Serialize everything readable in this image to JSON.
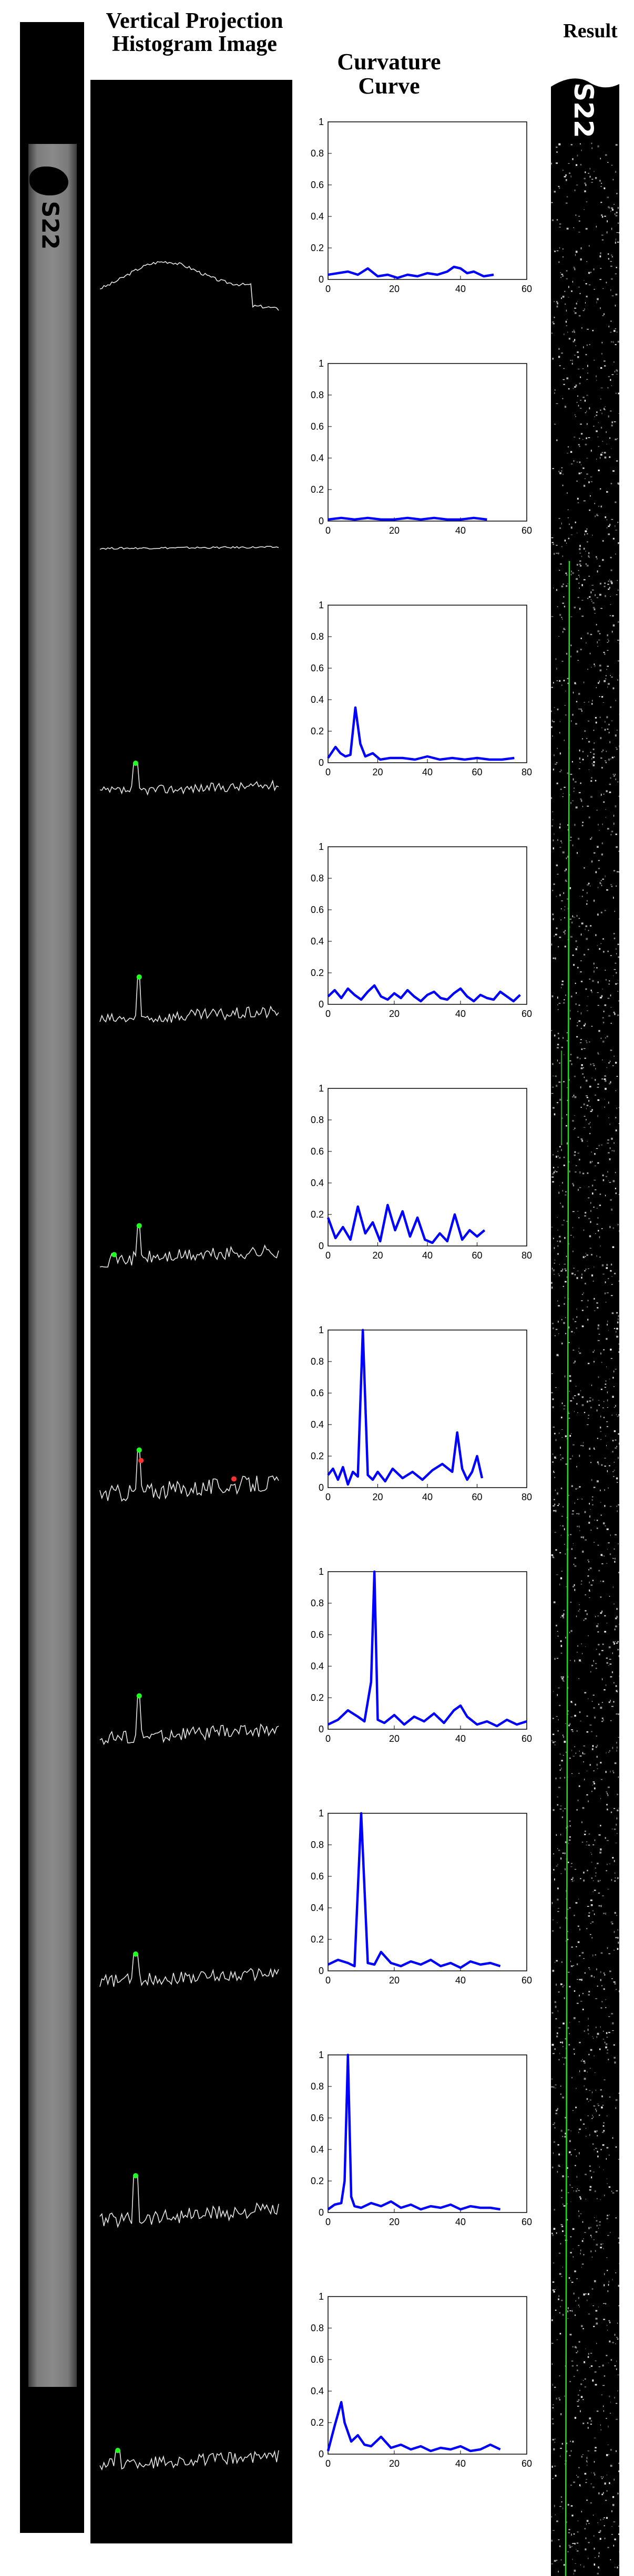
{
  "headers": {
    "vertical_projection": "Vertical Projection Histogram Image",
    "curvature": "Curvature Curve",
    "result": "Result"
  },
  "strip_label": "S22",
  "colors": {
    "curve": "#0000ff",
    "peak_green": "#22ff22",
    "peak_red": "#ff3030",
    "result_line": "#22dd22"
  },
  "chart_data": [
    {
      "type": "line",
      "xlim": [
        0,
        60
      ],
      "ylim": [
        0,
        1
      ],
      "xticks": [
        0,
        20,
        40,
        60
      ],
      "yticks": [
        0,
        0.2,
        0.4,
        0.6,
        0.8,
        1
      ],
      "series": [
        {
          "x": [
            0,
            3,
            6,
            9,
            12,
            15,
            18,
            21,
            24,
            27,
            30,
            33,
            36,
            38,
            40,
            42,
            44,
            47,
            50
          ],
          "y": [
            0.03,
            0.04,
            0.05,
            0.03,
            0.07,
            0.02,
            0.03,
            0.01,
            0.03,
            0.02,
            0.04,
            0.03,
            0.05,
            0.08,
            0.07,
            0.04,
            0.05,
            0.02,
            0.03
          ]
        }
      ]
    },
    {
      "type": "line",
      "xlim": [
        0,
        60
      ],
      "ylim": [
        0,
        1
      ],
      "xticks": [
        0,
        20,
        40,
        60
      ],
      "yticks": [
        0,
        0.2,
        0.4,
        0.6,
        0.8,
        1
      ],
      "series": [
        {
          "x": [
            0,
            4,
            8,
            12,
            16,
            20,
            24,
            28,
            32,
            36,
            40,
            44,
            48
          ],
          "y": [
            0.01,
            0.02,
            0.01,
            0.02,
            0.01,
            0.01,
            0.02,
            0.01,
            0.02,
            0.01,
            0.01,
            0.02,
            0.01
          ]
        }
      ]
    },
    {
      "type": "line",
      "xlim": [
        0,
        80
      ],
      "ylim": [
        0,
        1
      ],
      "xticks": [
        0,
        20,
        40,
        60,
        80
      ],
      "yticks": [
        0,
        0.2,
        0.4,
        0.6,
        0.8,
        1
      ],
      "series": [
        {
          "x": [
            0,
            3,
            5,
            7,
            9,
            11,
            13,
            15,
            18,
            21,
            25,
            30,
            35,
            40,
            45,
            50,
            55,
            60,
            65,
            70,
            75
          ],
          "y": [
            0.03,
            0.1,
            0.06,
            0.04,
            0.05,
            0.35,
            0.12,
            0.04,
            0.06,
            0.02,
            0.03,
            0.03,
            0.02,
            0.04,
            0.02,
            0.03,
            0.02,
            0.03,
            0.02,
            0.02,
            0.03
          ]
        }
      ]
    },
    {
      "type": "line",
      "xlim": [
        0,
        60
      ],
      "ylim": [
        0,
        1
      ],
      "xticks": [
        0,
        20,
        40,
        60
      ],
      "yticks": [
        0,
        0.2,
        0.4,
        0.6,
        0.8,
        1
      ],
      "series": [
        {
          "x": [
            0,
            2,
            4,
            6,
            8,
            10,
            12,
            14,
            16,
            18,
            20,
            22,
            24,
            26,
            28,
            30,
            32,
            34,
            36,
            38,
            40,
            42,
            44,
            46,
            48,
            50,
            52,
            54,
            56,
            58
          ],
          "y": [
            0.05,
            0.09,
            0.04,
            0.1,
            0.06,
            0.03,
            0.08,
            0.12,
            0.05,
            0.03,
            0.07,
            0.04,
            0.09,
            0.05,
            0.02,
            0.06,
            0.08,
            0.04,
            0.03,
            0.07,
            0.1,
            0.05,
            0.02,
            0.06,
            0.04,
            0.03,
            0.08,
            0.05,
            0.02,
            0.06
          ]
        }
      ]
    },
    {
      "type": "line",
      "xlim": [
        0,
        80
      ],
      "ylim": [
        0,
        1
      ],
      "xticks": [
        0,
        20,
        40,
        60,
        80
      ],
      "yticks": [
        0,
        0.2,
        0.4,
        0.6,
        0.8,
        1
      ],
      "series": [
        {
          "x": [
            0,
            3,
            6,
            9,
            12,
            15,
            18,
            21,
            24,
            27,
            30,
            33,
            36,
            39,
            42,
            45,
            48,
            51,
            54,
            57,
            60,
            63
          ],
          "y": [
            0.18,
            0.05,
            0.12,
            0.04,
            0.25,
            0.08,
            0.15,
            0.03,
            0.26,
            0.1,
            0.22,
            0.06,
            0.18,
            0.04,
            0.02,
            0.08,
            0.03,
            0.2,
            0.04,
            0.1,
            0.06,
            0.1
          ]
        }
      ]
    },
    {
      "type": "line",
      "xlim": [
        0,
        80
      ],
      "ylim": [
        0,
        1
      ],
      "xticks": [
        0,
        20,
        40,
        60,
        80
      ],
      "yticks": [
        0,
        0.2,
        0.4,
        0.6,
        0.8,
        1
      ],
      "series": [
        {
          "x": [
            0,
            2,
            4,
            6,
            8,
            10,
            12,
            14,
            16,
            18,
            20,
            23,
            26,
            30,
            34,
            38,
            42,
            46,
            50,
            52,
            54,
            56,
            58,
            60,
            62
          ],
          "y": [
            0.08,
            0.12,
            0.05,
            0.13,
            0.02,
            0.1,
            0.07,
            1.0,
            0.08,
            0.05,
            0.1,
            0.04,
            0.12,
            0.06,
            0.1,
            0.05,
            0.11,
            0.15,
            0.1,
            0.35,
            0.12,
            0.05,
            0.1,
            0.2,
            0.06
          ]
        }
      ]
    },
    {
      "type": "line",
      "xlim": [
        0,
        60
      ],
      "ylim": [
        0,
        1
      ],
      "xticks": [
        0,
        20,
        40,
        60
      ],
      "yticks": [
        0,
        0.2,
        0.4,
        0.6,
        0.8,
        1
      ],
      "series": [
        {
          "x": [
            0,
            3,
            6,
            9,
            11,
            13,
            14,
            15,
            17,
            20,
            23,
            26,
            29,
            32,
            35,
            38,
            40,
            42,
            45,
            48,
            51,
            54,
            57,
            60
          ],
          "y": [
            0.03,
            0.06,
            0.12,
            0.08,
            0.05,
            0.3,
            1.0,
            0.06,
            0.04,
            0.09,
            0.03,
            0.08,
            0.05,
            0.1,
            0.04,
            0.12,
            0.15,
            0.08,
            0.03,
            0.05,
            0.02,
            0.06,
            0.03,
            0.05
          ]
        }
      ]
    },
    {
      "type": "line",
      "xlim": [
        0,
        60
      ],
      "ylim": [
        0,
        1
      ],
      "xticks": [
        0,
        20,
        40,
        60
      ],
      "yticks": [
        0,
        0.2,
        0.4,
        0.6,
        0.8,
        1
      ],
      "series": [
        {
          "x": [
            0,
            3,
            6,
            8,
            10,
            12,
            14,
            16,
            19,
            22,
            25,
            28,
            31,
            34,
            37,
            40,
            43,
            46,
            49,
            52
          ],
          "y": [
            0.04,
            0.07,
            0.05,
            0.03,
            1.0,
            0.05,
            0.04,
            0.12,
            0.05,
            0.03,
            0.06,
            0.04,
            0.07,
            0.03,
            0.05,
            0.02,
            0.06,
            0.04,
            0.05,
            0.03
          ]
        }
      ]
    },
    {
      "type": "line",
      "xlim": [
        0,
        60
      ],
      "ylim": [
        0,
        1
      ],
      "xticks": [
        0,
        20,
        40,
        60
      ],
      "yticks": [
        0,
        0.2,
        0.4,
        0.6,
        0.8,
        1
      ],
      "series": [
        {
          "x": [
            0,
            2,
            4,
            5,
            6,
            7,
            8,
            10,
            13,
            16,
            19,
            22,
            25,
            28,
            31,
            34,
            37,
            40,
            43,
            46,
            49,
            52
          ],
          "y": [
            0.02,
            0.05,
            0.06,
            0.2,
            1.0,
            0.1,
            0.04,
            0.03,
            0.06,
            0.04,
            0.07,
            0.03,
            0.05,
            0.02,
            0.04,
            0.03,
            0.05,
            0.02,
            0.04,
            0.03,
            0.03,
            0.02
          ]
        }
      ]
    },
    {
      "type": "line",
      "xlim": [
        0,
        60
      ],
      "ylim": [
        0,
        1
      ],
      "xticks": [
        0,
        20,
        40,
        60
      ],
      "yticks": [
        0,
        0.2,
        0.4,
        0.6,
        0.8,
        1
      ],
      "series": [
        {
          "x": [
            0,
            2,
            4,
            5,
            7,
            9,
            11,
            13,
            16,
            19,
            22,
            25,
            28,
            31,
            34,
            37,
            40,
            43,
            46,
            49,
            52
          ],
          "y": [
            0.02,
            0.18,
            0.33,
            0.2,
            0.08,
            0.12,
            0.06,
            0.05,
            0.11,
            0.04,
            0.06,
            0.03,
            0.05,
            0.02,
            0.04,
            0.03,
            0.05,
            0.02,
            0.03,
            0.06,
            0.03
          ]
        }
      ]
    }
  ]
}
